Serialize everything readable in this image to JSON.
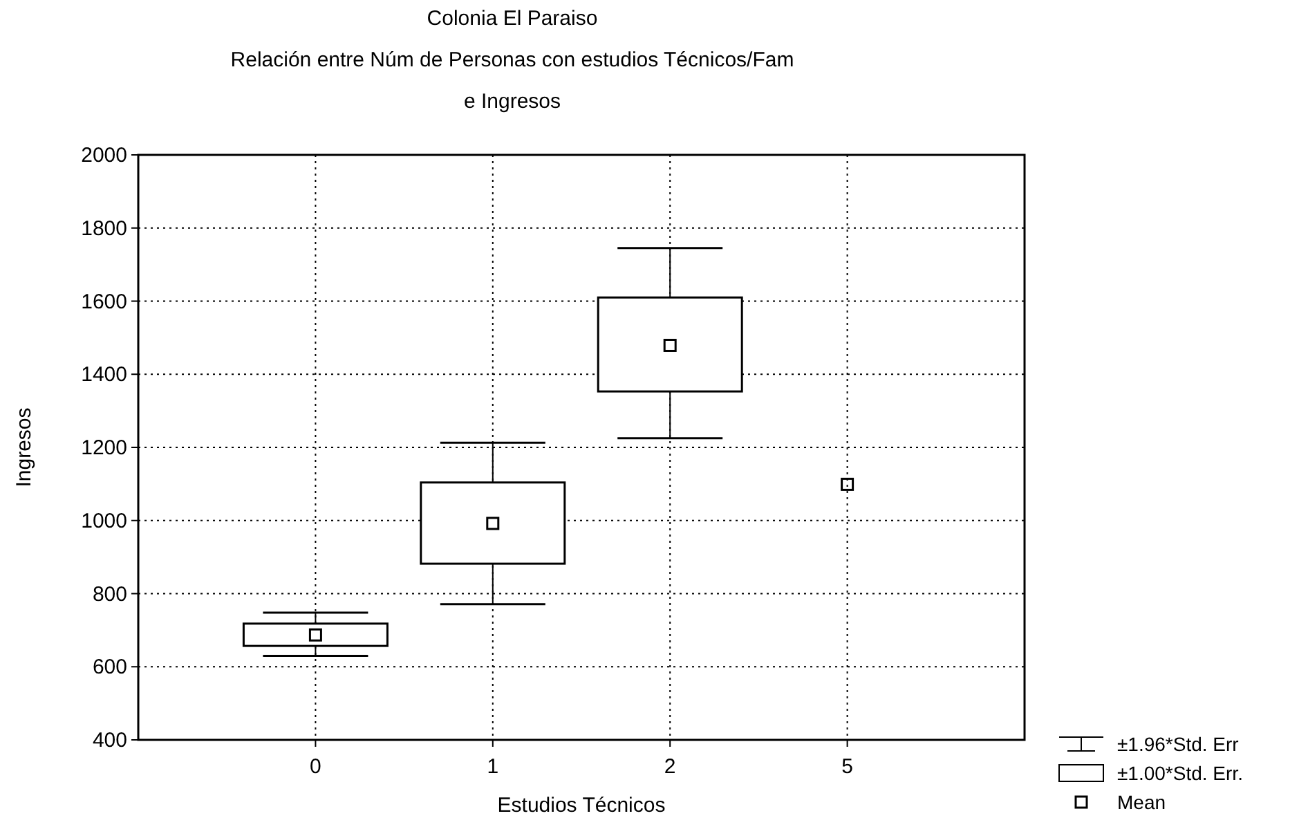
{
  "chart_data": {
    "type": "box",
    "title": "Colonia El Paraiso",
    "subtitle": "Relación entre Núm de Personas con estudios Técnicos/Fam\ne Ingresos",
    "xlabel": "Estudios Técnicos",
    "ylabel": "Ingresos",
    "categories": [
      "0",
      "1",
      "2",
      "5"
    ],
    "series": [
      {
        "name": "±1.96*Std. Err",
        "color": "#000000",
        "boxes": [
          {
            "low": 630,
            "q1": 657,
            "q3": 718,
            "high": 748
          },
          {
            "low": 771,
            "q1": 882,
            "q3": 1104,
            "high": 1213
          },
          {
            "low": 1225,
            "q1": 1353,
            "q3": 1610,
            "high": 1745
          },
          null
        ]
      },
      {
        "name": "Mean",
        "type": "scatter",
        "color": "#000000",
        "marker": "square",
        "values": [
          687,
          992,
          1479,
          1099
        ]
      }
    ],
    "ylim": [
      400,
      2000
    ],
    "yticks": [
      400,
      600,
      800,
      1000,
      1200,
      1400,
      1600,
      1800,
      2000
    ],
    "grid": true,
    "legend": "bottom right",
    "annotations": [
      "±1.00*Std. Err."
    ]
  }
}
